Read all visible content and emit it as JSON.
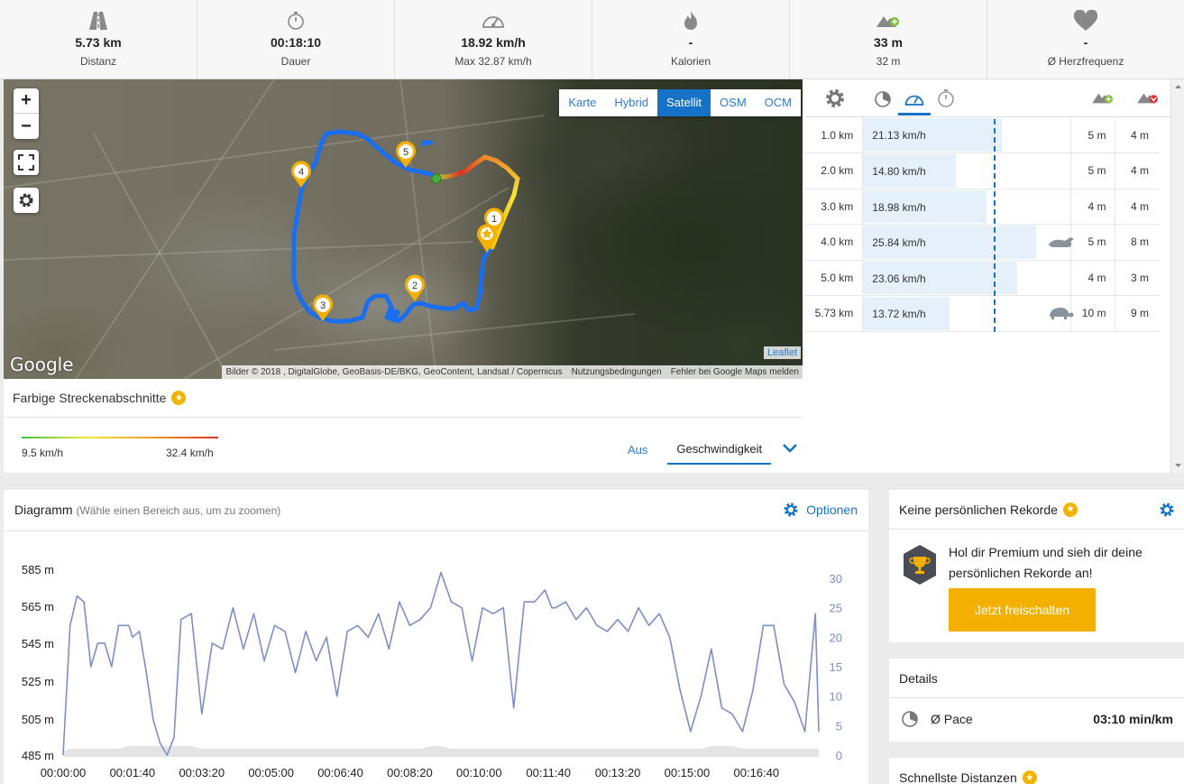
{
  "stats": [
    {
      "icon": "road-icon",
      "value": "5.73 km",
      "label": "Distanz"
    },
    {
      "icon": "stopwatch-icon",
      "value": "00:18:10",
      "label": "Dauer"
    },
    {
      "icon": "speedometer-icon",
      "value": "18.92 km/h",
      "label": "Max 32.87 km/h"
    },
    {
      "icon": "flame-icon",
      "value": "-",
      "label": "Kalorien"
    },
    {
      "icon": "elevation-up-icon",
      "value": "33 m",
      "label": "32 m"
    },
    {
      "icon": "heart-icon",
      "value": "-",
      "label": "Ø Herzfrequenz"
    }
  ],
  "map": {
    "layers": [
      "Karte",
      "Hybrid",
      "Satellit",
      "OSM",
      "OCM"
    ],
    "active_layer": "Satellit",
    "zoom_in": "+",
    "zoom_out": "−",
    "markers": [
      "1",
      "2",
      "3",
      "4",
      "5"
    ],
    "google_logo": "Google",
    "leaflet": "Leaflet",
    "attribution": "Bilder © 2018 , DigitalGlobe, GeoBasis-DE/BKG, GeoContent, Landsat / Copernicus",
    "terms": "Nutzungsbedingungen",
    "report": "Fehler bei Google Maps melden"
  },
  "segments": {
    "title": "Farbige Streckenabschnitte",
    "min": "9.5 km/h",
    "max": "32.4 km/h",
    "off": "Aus",
    "selected": "Geschwindigkeit"
  },
  "laps": [
    {
      "km": "1.0 km",
      "speed": "21.13 km/h",
      "fill": 0.64,
      "up": "5 m",
      "down": "4 m",
      "animal": ""
    },
    {
      "km": "2.0 km",
      "speed": "14.80 km/h",
      "fill": 0.43,
      "up": "5 m",
      "down": "4 m",
      "animal": ""
    },
    {
      "km": "3.0 km",
      "speed": "18.98 km/h",
      "fill": 0.57,
      "up": "4 m",
      "down": "4 m",
      "animal": ""
    },
    {
      "km": "4.0 km",
      "speed": "25.84 km/h",
      "fill": 0.8,
      "up": "5 m",
      "down": "8 m",
      "animal": "rabbit-icon"
    },
    {
      "km": "5.0 km",
      "speed": "23.06 km/h",
      "fill": 0.71,
      "up": "4 m",
      "down": "3 m",
      "animal": ""
    },
    {
      "km": "5.73 km",
      "speed": "13.72 km/h",
      "fill": 0.4,
      "up": "10 m",
      "down": "9 m",
      "animal": "turtle-icon"
    }
  ],
  "diagram": {
    "title": "Diagramm",
    "hint": "(Wähle einen Bereich aus, um zu zoomen)",
    "options": "Optionen"
  },
  "chart_data": {
    "type": "line",
    "title": "",
    "y_left_ticks": [
      "585 m",
      "565 m",
      "545 m",
      "525 m",
      "505 m",
      "485 m"
    ],
    "y_right_ticks": [
      "30",
      "25",
      "20",
      "15",
      "10",
      "5",
      "0"
    ],
    "x_ticks": [
      "00:00:00",
      "00:01:40",
      "00:03:20",
      "00:05:00",
      "00:06:40",
      "00:08:20",
      "00:10:00",
      "00:11:40",
      "00:13:20",
      "00:15:00",
      "00:16:40"
    ],
    "ylim_left": [
      485,
      585
    ],
    "ylim_right": [
      0,
      30
    ],
    "series": [
      {
        "color": "#7e8ec6",
        "x": [
          0,
          10,
          20,
          30,
          40,
          50,
          60,
          70,
          80,
          95,
          100,
          110,
          120,
          130,
          140,
          150,
          160,
          170,
          185,
          200,
          215,
          230,
          245,
          260,
          275,
          290,
          305,
          320,
          335,
          350,
          365,
          380,
          395,
          410,
          425,
          440,
          455,
          470,
          485,
          500,
          515,
          530,
          545,
          560,
          575,
          590,
          605,
          620,
          635,
          650,
          665,
          680,
          695,
          705,
          710,
          725,
          740,
          755,
          770,
          785,
          800,
          815,
          830,
          845,
          860,
          875,
          890,
          905,
          920,
          935,
          950,
          965,
          980,
          995,
          1010,
          1025,
          1040,
          1055,
          1070,
          1085,
          1090
        ],
        "values": [
          0,
          22,
          27,
          26,
          15,
          19,
          19,
          15,
          22,
          22,
          20,
          21,
          14,
          6,
          2,
          0,
          3,
          23,
          24,
          7,
          19,
          18,
          25,
          18,
          24,
          16,
          22,
          21,
          14,
          21,
          16,
          20,
          10,
          21,
          22,
          20,
          24,
          18,
          26,
          22,
          23,
          25,
          31,
          26,
          25,
          16,
          25,
          24,
          25,
          8,
          26,
          26,
          28,
          25,
          25,
          26,
          23,
          25,
          22,
          21,
          23,
          21,
          25,
          22,
          24,
          20,
          11,
          4,
          10,
          18,
          8,
          7,
          4,
          11,
          22,
          22,
          12,
          9,
          4,
          24,
          4
        ]
      }
    ],
    "elevation_area": [
      0,
      1,
      1,
      1,
      1,
      1,
      1,
      1,
      1,
      2,
      2,
      2,
      2,
      2,
      2,
      2,
      2,
      2,
      2,
      1,
      1,
      1,
      1,
      1,
      1,
      1,
      1,
      1,
      1,
      1,
      1,
      1,
      1,
      1,
      1,
      1,
      1,
      1,
      1,
      1,
      1,
      2,
      2,
      1,
      1,
      1,
      1,
      1,
      1,
      1,
      1,
      1,
      1,
      1,
      1,
      1,
      1,
      1,
      1,
      1,
      1,
      1,
      1,
      1,
      1,
      1,
      1,
      1,
      1,
      2,
      2,
      2,
      1,
      1,
      1,
      1,
      1,
      1,
      1,
      1,
      1
    ]
  },
  "records": {
    "title": "Keine persönlichen Rekorde",
    "message": "Hol dir Premium und sieh dir deine persönlichen Rekorde an!",
    "button": "Jetzt freischalten"
  },
  "details": {
    "title": "Details",
    "pace_label": "Ø Pace",
    "pace_value": "03:10 min/km"
  },
  "fastest": {
    "title": "Schnellste Distanzen"
  }
}
